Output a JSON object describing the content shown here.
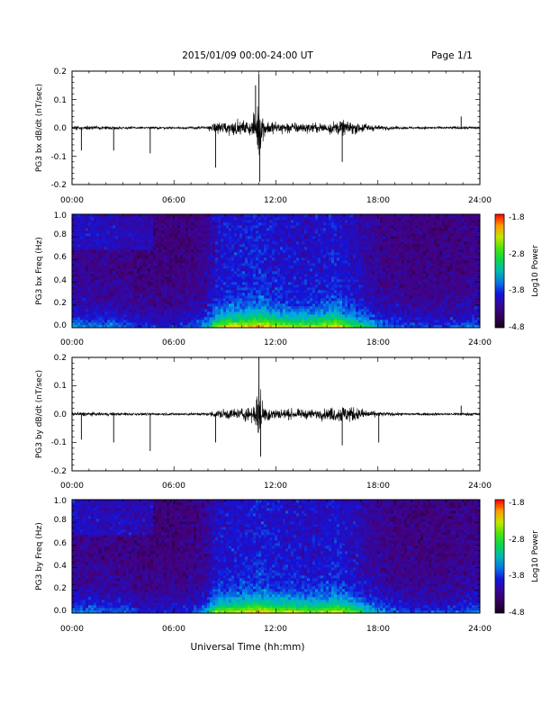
{
  "header": {
    "title": "2015/01/09  00:00-24:00 UT",
    "page": "Page 1/1"
  },
  "footer": {
    "xlabel": "Universal Time (hh:mm)"
  },
  "colors": {
    "trace": "#000000",
    "spectrogram_low": "#1a0033",
    "spectrogram_high": "#ff0000"
  },
  "chart_data": [
    {
      "type": "line",
      "ylabel": "PG3 bx dB/dt (nT/sec)",
      "xlim": [
        "00:00",
        "24:00"
      ],
      "ylim": [
        -0.2,
        0.2
      ],
      "x_ticks": [
        "00:00",
        "06:00",
        "12:00",
        "18:00",
        "24:00"
      ],
      "y_ticks": [
        "-0.2",
        "-0.1",
        "0.0",
        "0.1",
        "0.2"
      ],
      "envelope": {
        "x_hours": [
          0,
          1,
          2,
          3,
          4,
          5,
          6,
          7,
          8,
          8.5,
          9,
          9.5,
          10,
          10.5,
          10.8,
          11,
          11.3,
          12,
          12.5,
          13,
          14,
          15,
          15.5,
          16,
          16.5,
          17,
          18,
          19,
          20,
          21,
          22,
          23,
          24
        ],
        "amplitude": [
          0.015,
          0.012,
          0.01,
          0.01,
          0.008,
          0.008,
          0.008,
          0.008,
          0.012,
          0.035,
          0.05,
          0.045,
          0.04,
          0.05,
          0.09,
          0.18,
          0.06,
          0.04,
          0.04,
          0.035,
          0.03,
          0.035,
          0.045,
          0.045,
          0.04,
          0.035,
          0.015,
          0.01,
          0.008,
          0.008,
          0.008,
          0.01,
          0.01
        ]
      },
      "spikes": [
        {
          "x": 0.55,
          "y": -0.08
        },
        {
          "x": 2.45,
          "y": -0.08
        },
        {
          "x": 4.6,
          "y": -0.09
        },
        {
          "x": 8.45,
          "y": -0.14
        },
        {
          "x": 10.8,
          "y": 0.15
        },
        {
          "x": 11.0,
          "y": 0.19
        },
        {
          "x": 11.05,
          "y": -0.19
        },
        {
          "x": 15.9,
          "y": -0.12
        },
        {
          "x": 22.9,
          "y": 0.04
        }
      ]
    },
    {
      "type": "heatmap",
      "ylabel": "PG3 bx Freq (Hz)",
      "xlim": [
        "00:00",
        "24:00"
      ],
      "ylim": [
        0.0,
        1.0
      ],
      "x_ticks": [
        "00:00",
        "06:00",
        "12:00",
        "18:00",
        "24:00"
      ],
      "y_ticks": [
        "0.0",
        "0.2",
        "0.4",
        "0.6",
        "0.8",
        "1.0"
      ],
      "colorbar": {
        "label": "Log10 Power",
        "ticks": [
          "-1.8",
          "-2.8",
          "-3.8",
          "-4.8"
        ],
        "range": [
          -4.8,
          -1.8
        ]
      },
      "activity": {
        "x_hours": [
          0,
          1,
          2,
          3,
          4,
          5,
          6,
          7,
          8,
          8.5,
          9,
          10,
          11,
          12,
          13,
          14,
          15,
          15.5,
          16,
          17,
          18,
          19,
          20,
          21,
          22,
          23,
          24
        ],
        "level": [
          0.35,
          0.3,
          0.3,
          0.25,
          0.15,
          0.15,
          0.15,
          0.2,
          0.4,
          0.8,
          0.85,
          0.9,
          1.0,
          0.85,
          0.8,
          0.75,
          0.85,
          0.95,
          0.8,
          0.6,
          0.35,
          0.25,
          0.2,
          0.2,
          0.2,
          0.25,
          0.3
        ]
      }
    },
    {
      "type": "line",
      "ylabel": "PG3 by dB/dt (nT/sec)",
      "xlim": [
        "00:00",
        "24:00"
      ],
      "ylim": [
        -0.2,
        0.2
      ],
      "x_ticks": [
        "00:00",
        "06:00",
        "12:00",
        "18:00",
        "24:00"
      ],
      "y_ticks": [
        "-0.2",
        "-0.1",
        "0.0",
        "0.1",
        "0.2"
      ],
      "envelope": {
        "x_hours": [
          0,
          1,
          2,
          3,
          4,
          5,
          6,
          7,
          8,
          8.5,
          9,
          9.5,
          10,
          10.5,
          10.8,
          11,
          11.3,
          12,
          12.5,
          13,
          14,
          15,
          15.5,
          16,
          16.5,
          17,
          18,
          19,
          20,
          21,
          22,
          23,
          24
        ],
        "amplitude": [
          0.015,
          0.012,
          0.01,
          0.01,
          0.008,
          0.008,
          0.008,
          0.008,
          0.01,
          0.025,
          0.035,
          0.035,
          0.04,
          0.05,
          0.08,
          0.2,
          0.06,
          0.035,
          0.035,
          0.03,
          0.03,
          0.035,
          0.05,
          0.06,
          0.05,
          0.035,
          0.015,
          0.01,
          0.008,
          0.008,
          0.008,
          0.01,
          0.012
        ]
      },
      "spikes": [
        {
          "x": 0.55,
          "y": -0.09
        },
        {
          "x": 2.45,
          "y": -0.1
        },
        {
          "x": 4.6,
          "y": -0.13
        },
        {
          "x": 8.45,
          "y": -0.1
        },
        {
          "x": 11.0,
          "y": 0.2
        },
        {
          "x": 11.1,
          "y": -0.15
        },
        {
          "x": 15.9,
          "y": -0.11
        },
        {
          "x": 18.05,
          "y": -0.1
        },
        {
          "x": 22.9,
          "y": 0.03
        }
      ]
    },
    {
      "type": "heatmap",
      "ylabel": "PG3 by Freq (Hz)",
      "xlim": [
        "00:00",
        "24:00"
      ],
      "ylim": [
        0.0,
        1.0
      ],
      "x_ticks": [
        "00:00",
        "06:00",
        "12:00",
        "18:00",
        "24:00"
      ],
      "y_ticks": [
        "0.0",
        "0.2",
        "0.4",
        "0.6",
        "0.8",
        "1.0"
      ],
      "colorbar": {
        "label": "Log10 Power",
        "ticks": [
          "-1.8",
          "-2.8",
          "-3.8",
          "-4.8"
        ],
        "range": [
          -4.8,
          -1.8
        ]
      },
      "activity": {
        "x_hours": [
          0,
          1,
          2,
          3,
          4,
          5,
          6,
          7,
          8,
          8.5,
          9,
          10,
          11,
          12,
          13,
          14,
          15,
          15.5,
          16,
          17,
          18,
          19,
          20,
          21,
          22,
          23,
          24
        ],
        "level": [
          0.3,
          0.3,
          0.25,
          0.25,
          0.15,
          0.15,
          0.15,
          0.2,
          0.4,
          0.75,
          0.8,
          0.85,
          0.95,
          0.85,
          0.8,
          0.75,
          0.8,
          0.9,
          0.8,
          0.6,
          0.35,
          0.25,
          0.2,
          0.2,
          0.2,
          0.25,
          0.3
        ]
      }
    }
  ]
}
